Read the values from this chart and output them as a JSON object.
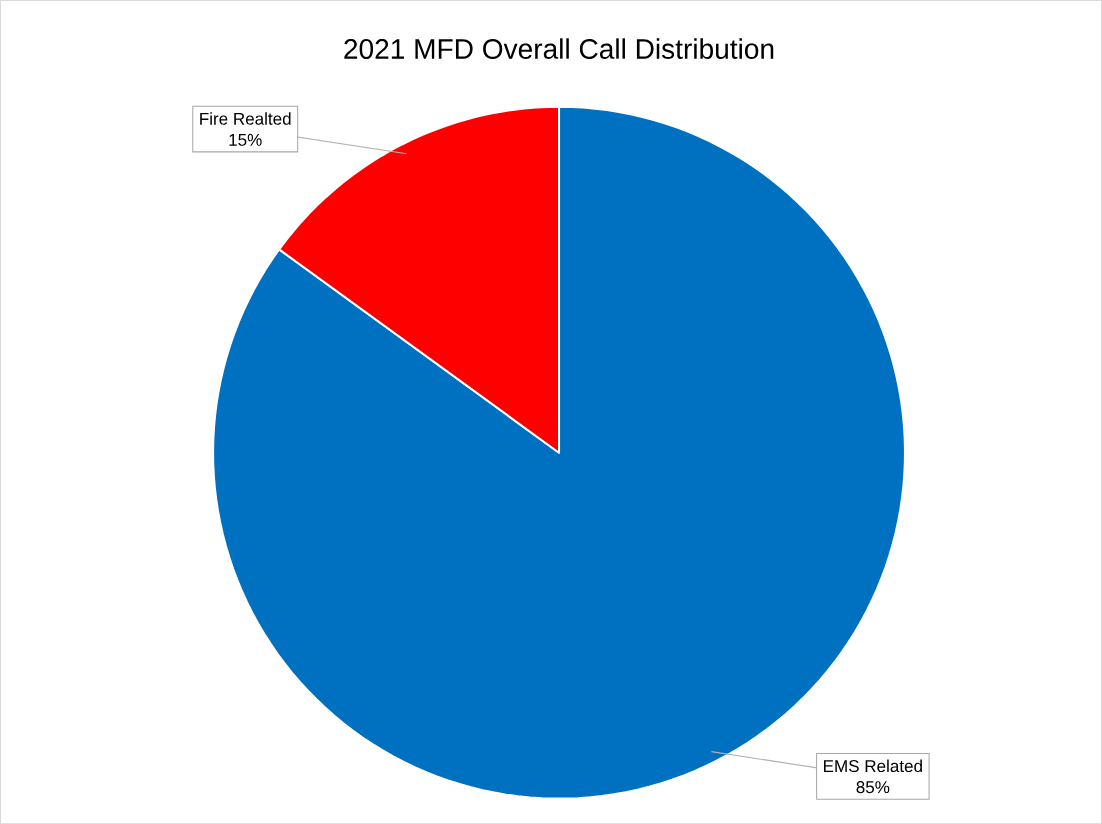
{
  "chart_data": {
    "type": "pie",
    "title": "2021 MFD Overall Call Distribution",
    "categories": [
      "EMS Related",
      "Fire Realted"
    ],
    "values": [
      85,
      15
    ],
    "colors": [
      "#0070c0",
      "#ff0000"
    ],
    "value_labels": [
      "85%",
      "15%"
    ]
  }
}
